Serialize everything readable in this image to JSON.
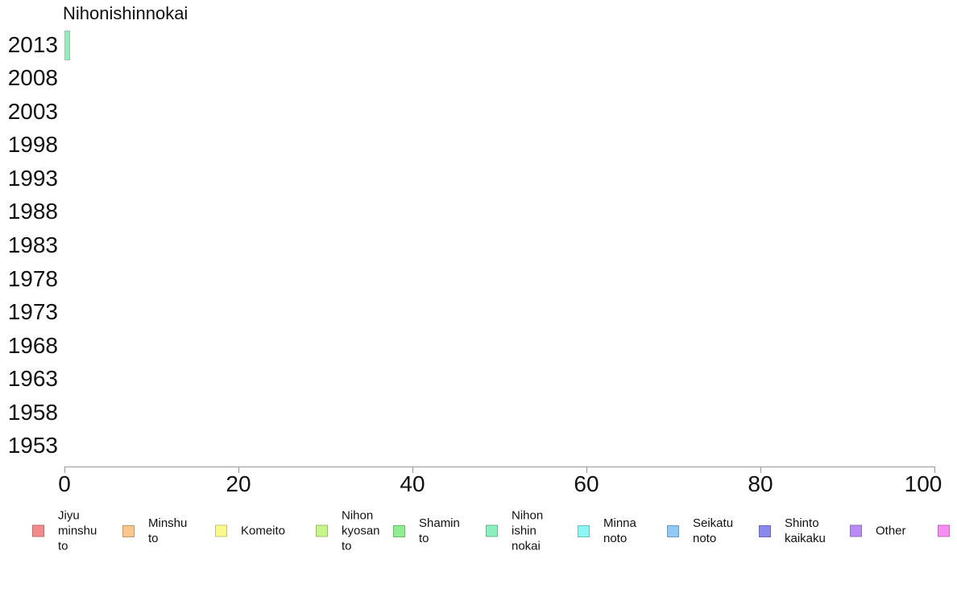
{
  "chart_data": {
    "type": "bar",
    "orientation": "horizontal",
    "title": "Nihonishinnokai",
    "categories": [
      "2013",
      "2008",
      "2003",
      "1998",
      "1993",
      "1988",
      "1983",
      "1978",
      "1973",
      "1968",
      "1963",
      "1958",
      "1953"
    ],
    "values": [
      0.5,
      0,
      0,
      0,
      0,
      0,
      0,
      0,
      0,
      0,
      0,
      0,
      0
    ],
    "xlabel": "",
    "ylabel": "",
    "xlim": [
      0,
      100
    ],
    "x_ticks": [
      0,
      20,
      40,
      60,
      80,
      100
    ],
    "grid": false,
    "bar_color": "#8BEFBD",
    "bar_border_color": "#a3bfae",
    "legend_position": "bottom",
    "legend": [
      {
        "label": "Jiyu\nminshu\nto",
        "color": "#F08C8C"
      },
      {
        "label": "Minshu\nto",
        "color": "#F9C68C"
      },
      {
        "label": "Komeito",
        "color": "#FAFA8C"
      },
      {
        "label": "Nihon\nkyosan\nto",
        "color": "#C8F48C"
      },
      {
        "label": "Shamin\nto",
        "color": "#90EE90"
      },
      {
        "label": "Nihon\nishin\nnokai",
        "color": "#8BEFBD"
      },
      {
        "label": "Minna\nnoto",
        "color": "#8CF6F6"
      },
      {
        "label": "Seikatu\nnoto",
        "color": "#90C8F6"
      },
      {
        "label": "Shinto\nkaikaku",
        "color": "#8A8AEC"
      },
      {
        "label": "Other",
        "color": "#BB8BF5"
      },
      {
        "label": "",
        "color": "#F88CF2"
      }
    ]
  },
  "colors": {
    "axis": "#999999",
    "text": "#111111",
    "background": "#ffffff"
  }
}
